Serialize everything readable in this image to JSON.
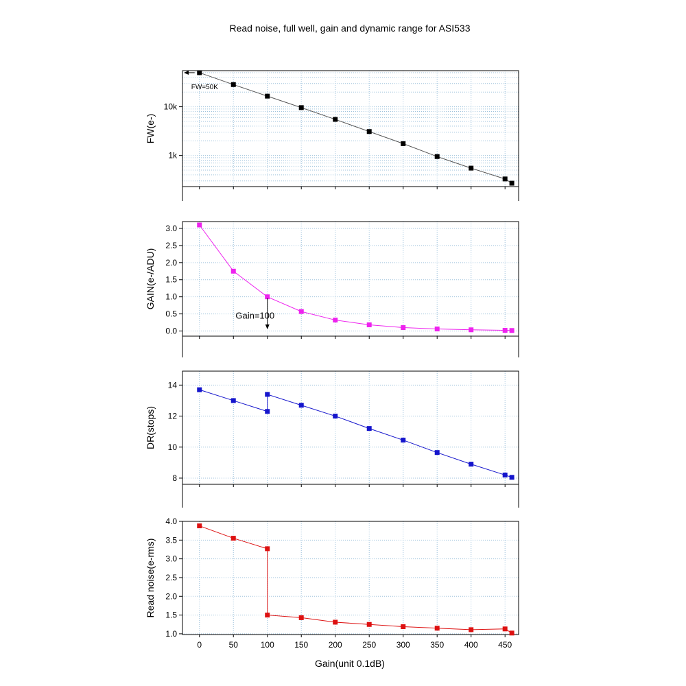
{
  "title": "Read noise, full well, gain and dynamic range for ASI533",
  "xlabel": "Gain(unit 0.1dB)",
  "colors": {
    "fw": "#000000",
    "gain": "#ee22ee",
    "dr": "#1515cc",
    "rn": "#dd1111",
    "grid": "#9ec2dc",
    "fw_line": "#555555"
  },
  "chart_data": [
    {
      "type": "line",
      "ylabel": "FW(e-)",
      "yscale": "log",
      "ylim": [
        230,
        55000
      ],
      "xlim": [
        -25,
        470
      ],
      "yticks": [
        1000,
        10000
      ],
      "ytick_labels": [
        "1k",
        "10k"
      ],
      "x": [
        0,
        50,
        100,
        150,
        200,
        250,
        300,
        350,
        400,
        450,
        460
      ],
      "series": [
        {
          "values": [
            50000,
            28500,
            16500,
            9600,
            5500,
            3100,
            1750,
            950,
            550,
            330,
            270
          ]
        }
      ],
      "annotation": {
        "text": "FW=50K",
        "at": [
          0,
          50000
        ]
      }
    },
    {
      "type": "line",
      "ylabel": "GAIN(e-/ADU)",
      "ylim": [
        -0.15,
        3.2
      ],
      "xlim": [
        -25,
        470
      ],
      "yticks": [
        0.0,
        0.5,
        1.0,
        1.5,
        2.0,
        2.5,
        3.0
      ],
      "ytick_labels": [
        "0.0",
        "0.5",
        "1.0",
        "1.5",
        "2.0",
        "2.5",
        "3.0"
      ],
      "x": [
        0,
        50,
        100,
        150,
        200,
        250,
        300,
        350,
        400,
        450,
        460
      ],
      "series": [
        {
          "values": [
            3.1,
            1.75,
            1.0,
            0.57,
            0.32,
            0.18,
            0.1,
            0.06,
            0.035,
            0.02,
            0.015
          ]
        }
      ],
      "annotation": {
        "text": "Gain=100",
        "at": [
          100,
          1.0
        ]
      }
    },
    {
      "type": "line",
      "ylabel": "DR(stops)",
      "ylim": [
        7.6,
        14.9
      ],
      "xlim": [
        -25,
        470
      ],
      "yticks": [
        8,
        10,
        12,
        14
      ],
      "ytick_labels": [
        "8",
        "10",
        "12",
        "14"
      ],
      "x": [
        0,
        50,
        100,
        100,
        150,
        200,
        250,
        300,
        350,
        400,
        450,
        460
      ],
      "series": [
        {
          "values": [
            13.7,
            13.0,
            12.3,
            13.4,
            12.7,
            12.0,
            11.2,
            10.45,
            9.65,
            8.9,
            8.2,
            8.05
          ]
        }
      ]
    },
    {
      "type": "line",
      "ylabel": "Read noise(e-rms)",
      "ylim": [
        0.98,
        4.0
      ],
      "xlim": [
        -25,
        470
      ],
      "yticks": [
        1.0,
        1.5,
        2.0,
        2.5,
        3.0,
        3.5,
        4.0
      ],
      "ytick_labels": [
        "1.0",
        "1.5",
        "2.0",
        "2.5",
        "3.0",
        "3.5",
        "4.0"
      ],
      "xticks": [
        0,
        50,
        100,
        150,
        200,
        250,
        300,
        350,
        400,
        450
      ],
      "xtick_labels": [
        "0",
        "50",
        "100",
        "150",
        "200",
        "250",
        "300",
        "350",
        "400",
        "450"
      ],
      "x": [
        0,
        50,
        100,
        100,
        150,
        200,
        250,
        300,
        350,
        400,
        450,
        460
      ],
      "series": [
        {
          "values": [
            3.88,
            3.55,
            3.27,
            1.5,
            1.43,
            1.31,
            1.25,
            1.19,
            1.15,
            1.11,
            1.13,
            1.02
          ]
        }
      ]
    }
  ]
}
